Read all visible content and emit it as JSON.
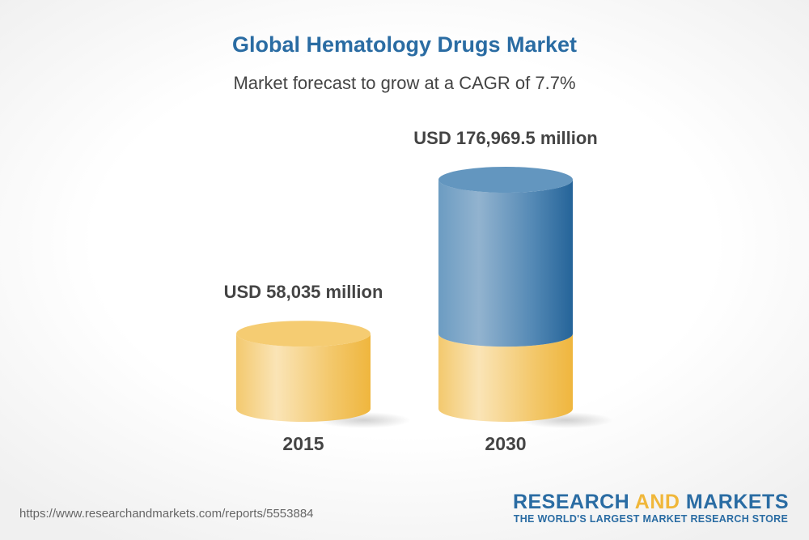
{
  "chart_data": {
    "type": "bar",
    "style": "3d-cylinder",
    "title": "Global Hematology Drugs Market",
    "subtitle": "Market forecast to grow at a CAGR of 7.7%",
    "categories": [
      "2015",
      "2030"
    ],
    "values": [
      58035,
      176969.5
    ],
    "data_labels": [
      "USD 58,035 million",
      "USD 176,969.5 million"
    ],
    "unit": "USD million",
    "grid": false,
    "colors": {
      "base": "#f2c160",
      "growth": "#3f7aaa"
    }
  },
  "footer": {
    "url": "https://www.researchandmarkets.com/reports/5553884",
    "logo_part1": "RESEARCH ",
    "logo_part2": "AND",
    "logo_part3": " MARKETS",
    "tagline": "THE WORLD'S LARGEST MARKET RESEARCH STORE"
  }
}
